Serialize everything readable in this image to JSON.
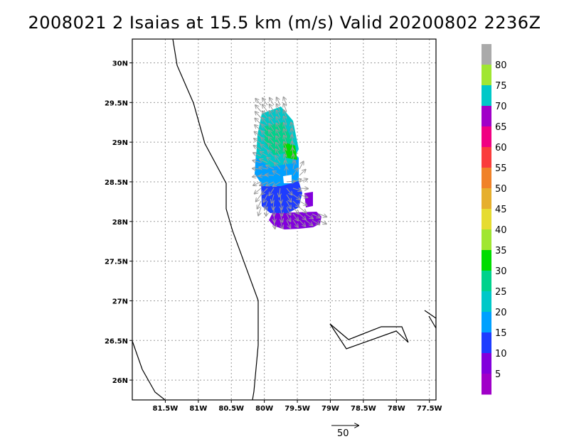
{
  "title": "2008021 2 Isaias at 15.5 km (m/s) Valid 20200802 2236Z",
  "map": {
    "lat_range": [
      25.75,
      30.3
    ],
    "lon_range": [
      -82,
      -77.4
    ],
    "lat_ticks": [
      {
        "value": 30.0,
        "label": "30N"
      },
      {
        "value": 29.5,
        "label": "29.5N"
      },
      {
        "value": 29.0,
        "label": "29N"
      },
      {
        "value": 28.5,
        "label": "28.5N"
      },
      {
        "value": 28.0,
        "label": "28N"
      },
      {
        "value": 27.5,
        "label": "27.5N"
      },
      {
        "value": 27.0,
        "label": "27N"
      },
      {
        "value": 26.5,
        "label": "26.5N"
      },
      {
        "value": 26.0,
        "label": "26N"
      }
    ],
    "lon_ticks": [
      {
        "value": -81.5,
        "label": "81.5W"
      },
      {
        "value": -81.0,
        "label": "81W"
      },
      {
        "value": -80.5,
        "label": "80.5W"
      },
      {
        "value": -80.0,
        "label": "80W"
      },
      {
        "value": -79.5,
        "label": "79.5W"
      },
      {
        "value": -79.0,
        "label": "79W"
      },
      {
        "value": -78.5,
        "label": "78.5W"
      },
      {
        "value": -78.0,
        "label": "78W"
      },
      {
        "value": -77.5,
        "label": "77.5W"
      }
    ],
    "grid": "dotted"
  },
  "colorbar": {
    "colors": [
      "#a000c8",
      "#8200dc",
      "#1e3cff",
      "#00a0ff",
      "#00c8c8",
      "#00d28c",
      "#00dc00",
      "#a0e632",
      "#e6dc32",
      "#e6af2d",
      "#f08228",
      "#fa3c3c",
      "#f00082",
      "#a000c8",
      "#00c8c8",
      "#a0e632",
      "#aaaaaa"
    ],
    "labels": [
      "5",
      "10",
      "15",
      "20",
      "25",
      "30",
      "35",
      "40",
      "45",
      "50",
      "55",
      "60",
      "65",
      "70",
      "75",
      "80"
    ]
  },
  "scale_vector": {
    "label": "50",
    "units": "m/s"
  }
}
